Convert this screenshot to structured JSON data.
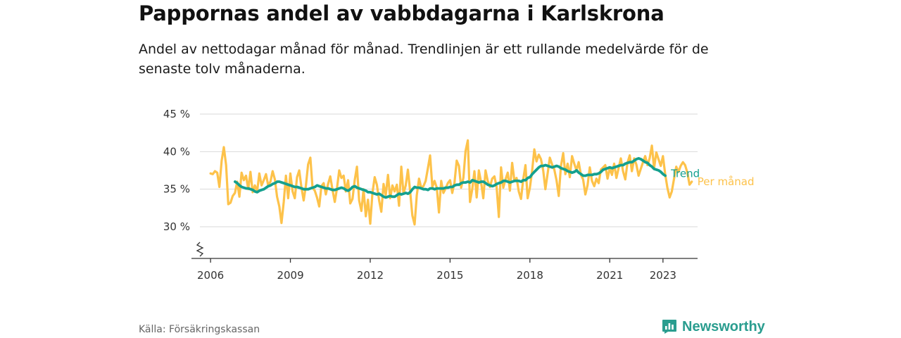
{
  "title": "Pappornas andel av vabbdagarna i Karlskrona",
  "subtitle": "Andel av nettodagar månad för månad. Trendlinjen är ett rullande medelvärde för de senaste tolv månaderna.",
  "source": "Källa: Försäkringskassan",
  "brand": "Newsworthy",
  "colors": {
    "monthly": "#fdc24a",
    "trend": "#14a08e",
    "grid": "#d9d9d9",
    "axis": "#333333",
    "brand": "#2a9d8f"
  },
  "chart_data": {
    "type": "line",
    "title": "Pappornas andel av vabbdagarna i Karlskrona",
    "xlabel": "",
    "ylabel": "",
    "xlim": [
      2005.6,
      2024.3
    ],
    "ylim": [
      25.5,
      45
    ],
    "x_ticks": [
      {
        "value": 2006,
        "label": "2006"
      },
      {
        "value": 2009,
        "label": "2009"
      },
      {
        "value": 2012,
        "label": "2012"
      },
      {
        "value": 2015,
        "label": "2015"
      },
      {
        "value": 2018,
        "label": "2018"
      },
      {
        "value": 2021,
        "label": "2021"
      },
      {
        "value": 2023,
        "label": "2023"
      }
    ],
    "y_ticks": [
      {
        "value": 30,
        "label": "30 %"
      },
      {
        "value": 35,
        "label": "35 %"
      },
      {
        "value": 40,
        "label": "40 %"
      },
      {
        "value": 45,
        "label": "45 %"
      }
    ],
    "axis_break": true,
    "series": [
      {
        "name": "Per månad",
        "start": 2006.0,
        "step": 0.08333,
        "values": [
          37.1,
          37.0,
          37.4,
          37.2,
          35.3,
          38.8,
          40.6,
          38.2,
          33.0,
          33.2,
          34.1,
          34.5,
          36.0,
          34.0,
          37.2,
          36.2,
          36.8,
          35.0,
          37.3,
          34.6,
          35.5,
          34.7,
          37.1,
          35.5,
          36.2,
          37.0,
          35.5,
          36.0,
          37.4,
          36.3,
          34.0,
          32.7,
          30.5,
          33.3,
          36.8,
          33.8,
          37.1,
          34.7,
          33.8,
          36.6,
          37.5,
          35.2,
          33.5,
          35.5,
          38.3,
          39.2,
          35.2,
          34.8,
          33.9,
          32.7,
          35.4,
          35.8,
          34.3,
          35.7,
          36.7,
          34.9,
          33.3,
          35.1,
          37.5,
          36.5,
          36.8,
          34.7,
          36.2,
          33.1,
          33.7,
          36.2,
          38.0,
          33.5,
          32.1,
          35.0,
          31.4,
          33.6,
          30.4,
          34.5,
          36.6,
          35.6,
          33.5,
          32.0,
          35.7,
          34.2,
          36.9,
          33.8,
          35.5,
          34.7,
          35.6,
          32.8,
          38.0,
          34.4,
          35.5,
          37.6,
          34.7,
          31.5,
          30.3,
          34.2,
          36.4,
          35.2,
          35.4,
          36.1,
          37.8,
          39.5,
          35.3,
          36.1,
          35.2,
          31.9,
          36.1,
          34.5,
          35.1,
          35.8,
          36.2,
          34.5,
          35.9,
          38.8,
          38.1,
          35.2,
          36.5,
          40.1,
          41.5,
          33.3,
          35.0,
          37.4,
          33.9,
          37.5,
          35.9,
          33.8,
          37.5,
          36.1,
          35.3,
          36.4,
          36.7,
          35.3,
          31.3,
          37.9,
          35.2,
          36.3,
          37.2,
          34.8,
          38.5,
          36.2,
          36.5,
          34.7,
          33.7,
          36.3,
          38.2,
          33.8,
          35.2,
          37.4,
          40.3,
          38.7,
          39.6,
          39.0,
          37.5,
          35.0,
          37.1,
          39.2,
          38.3,
          37.6,
          36.2,
          34.1,
          38.1,
          39.8,
          37.0,
          38.4,
          36.6,
          39.4,
          38.4,
          37.5,
          38.6,
          36.9,
          36.3,
          34.3,
          35.5,
          37.9,
          36.1,
          35.4,
          36.4,
          35.8,
          37.6,
          37.9,
          38.2,
          36.4,
          37.8,
          36.9,
          38.4,
          36.5,
          37.8,
          39.1,
          37.4,
          36.3,
          38.5,
          39.5,
          37.4,
          39.1,
          38.3,
          36.8,
          37.7,
          38.6,
          39.4,
          38.2,
          39.1,
          40.8,
          37.8,
          39.9,
          39.0,
          38.1,
          39.4,
          37.0,
          35.2,
          33.9,
          34.7,
          36.4,
          38.0,
          37.3,
          38.1,
          38.6,
          38.2,
          37.2,
          35.6,
          36.0
        ]
      },
      {
        "name": "Trend",
        "start": 2006.92,
        "step": 0.08333,
        "values": [
          36.0,
          35.8,
          35.5,
          35.3,
          35.2,
          35.1,
          35.1,
          35.0,
          34.9,
          34.7,
          34.6,
          34.8,
          34.9,
          35.0,
          35.2,
          35.4,
          35.5,
          35.7,
          35.8,
          36.0,
          36.0,
          35.9,
          35.8,
          35.7,
          35.6,
          35.5,
          35.4,
          35.3,
          35.3,
          35.2,
          35.1,
          35.0,
          35.0,
          35.0,
          35.1,
          35.2,
          35.3,
          35.5,
          35.4,
          35.3,
          35.2,
          35.1,
          35.1,
          35.0,
          34.9,
          34.9,
          35.0,
          35.1,
          35.2,
          35.1,
          34.9,
          34.8,
          35.0,
          35.3,
          35.4,
          35.2,
          35.1,
          35.0,
          34.9,
          34.8,
          34.6,
          34.6,
          34.5,
          34.4,
          34.3,
          34.4,
          34.2,
          34.0,
          33.9,
          34.0,
          34.1,
          34.0,
          34.0,
          34.2,
          34.4,
          34.3,
          34.4,
          34.5,
          34.4,
          34.6,
          35.0,
          35.3,
          35.2,
          35.2,
          35.1,
          35.0,
          35.0,
          34.9,
          35.1,
          35.1,
          35.0,
          35.1,
          35.1,
          35.1,
          35.1,
          35.2,
          35.2,
          35.3,
          35.3,
          35.5,
          35.6,
          35.6,
          35.8,
          35.9,
          35.9,
          36.0,
          35.9,
          36.2,
          36.1,
          36.0,
          35.9,
          36.0,
          36.0,
          35.8,
          35.6,
          35.5,
          35.4,
          35.5,
          35.7,
          35.8,
          35.9,
          36.1,
          36.1,
          36.0,
          35.9,
          36.0,
          36.1,
          36.1,
          36.1,
          36.0,
          36.2,
          36.2,
          36.5,
          36.6,
          37.0,
          37.3,
          37.6,
          37.9,
          38.1,
          38.1,
          38.2,
          38.1,
          38.0,
          37.9,
          38.0,
          38.1,
          38.0,
          37.8,
          37.7,
          37.6,
          37.4,
          37.3,
          37.2,
          37.3,
          37.5,
          37.2,
          37.0,
          36.8,
          36.8,
          36.9,
          36.9,
          36.9,
          37.0,
          37.0,
          37.1,
          37.3,
          37.6,
          37.7,
          37.8,
          37.9,
          37.8,
          37.9,
          38.0,
          38.1,
          38.2,
          38.2,
          38.4,
          38.5,
          38.6,
          38.6,
          38.8,
          39.0,
          39.1,
          39.0,
          38.8,
          38.6,
          38.5,
          38.2,
          38.0,
          37.7,
          37.6,
          37.5,
          37.3,
          37.0,
          36.8
        ]
      }
    ]
  }
}
